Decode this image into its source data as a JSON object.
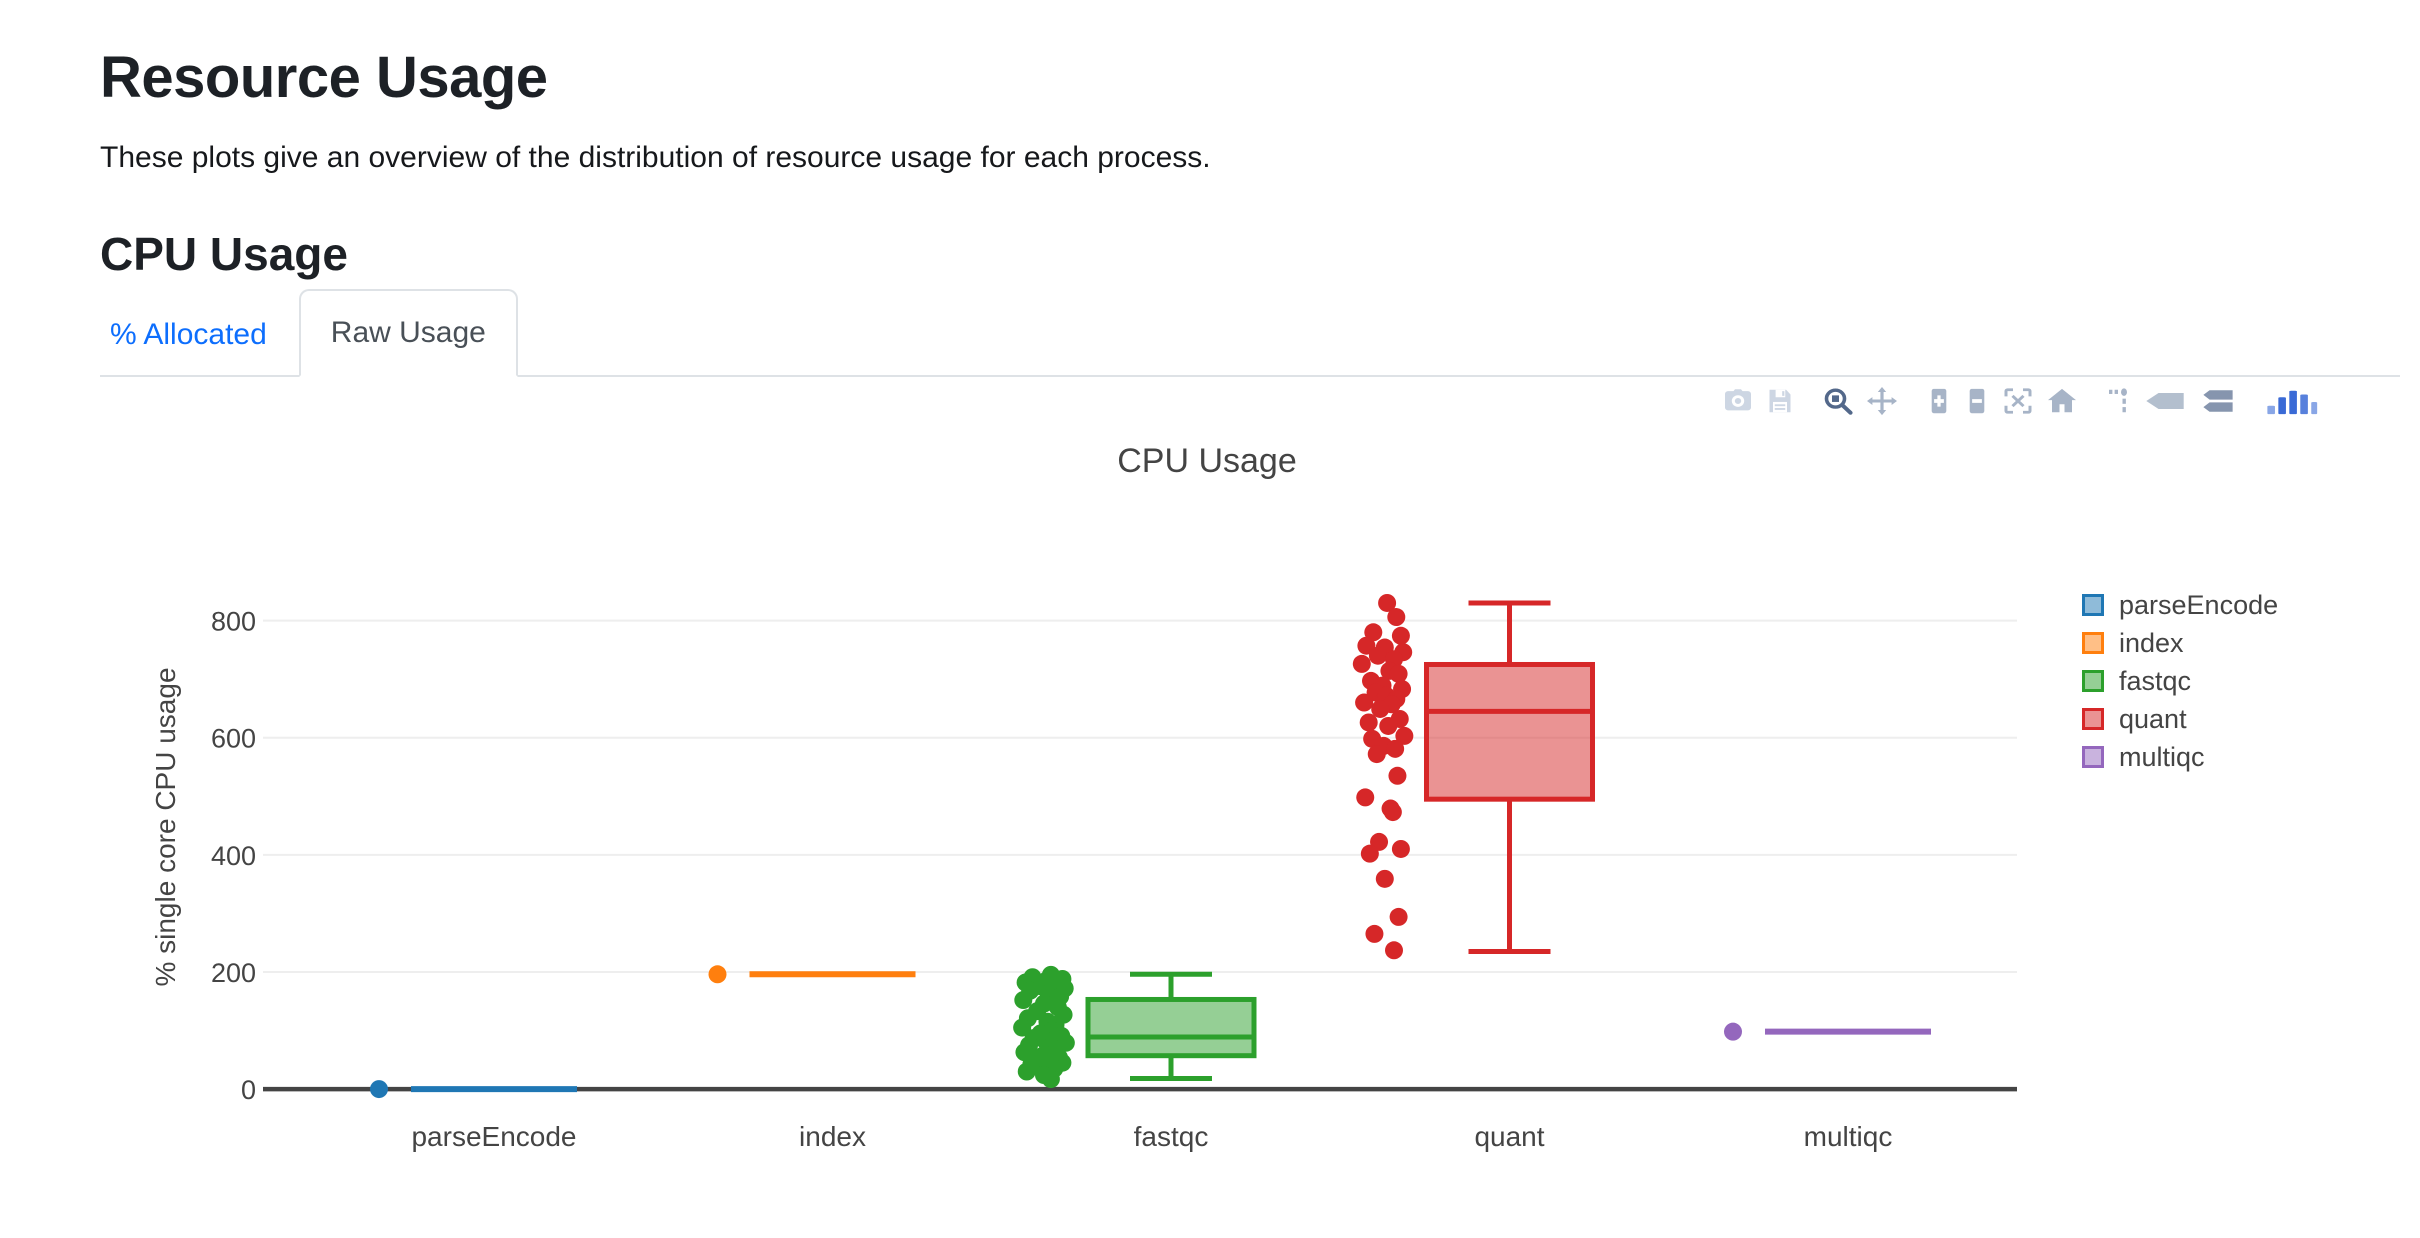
{
  "page": {
    "title": "Resource Usage",
    "subtitle": "These plots give an overview of the distribution of resource usage for each process.",
    "section_heading": "CPU Usage",
    "colors": {
      "heading": "#1d2126",
      "tab_link": "#0d6efd",
      "tab_active_text": "#495057",
      "tab_border": "#dee2e6"
    }
  },
  "tabs": [
    {
      "label": "% Allocated",
      "active": false
    },
    {
      "label": "Raw Usage",
      "active": true
    }
  ],
  "toolbar": {
    "buttons": [
      {
        "name": "download-png-icon",
        "icon": "camera",
        "color": "#cdd6e3",
        "group": 0
      },
      {
        "name": "save-plot-icon",
        "icon": "floppy",
        "color": "#cdd6e3",
        "group": 0
      },
      {
        "name": "zoom-icon",
        "icon": "zoom",
        "color": "#53688a",
        "group": 1,
        "active": true
      },
      {
        "name": "pan-icon",
        "icon": "pan",
        "color": "#a7b4c7",
        "group": 1
      },
      {
        "name": "zoom-in-icon",
        "icon": "zoomin",
        "color": "#a7b4c7",
        "group": 2
      },
      {
        "name": "zoom-out-icon",
        "icon": "zoomout",
        "color": "#a7b4c7",
        "group": 2
      },
      {
        "name": "autoscale-icon",
        "icon": "autoscale",
        "color": "#a7b4c7",
        "group": 2
      },
      {
        "name": "reset-axes-icon",
        "icon": "home",
        "color": "#a7b4c7",
        "group": 2
      },
      {
        "name": "spike-lines-icon",
        "icon": "spikes",
        "color": "#a7b4c7",
        "group": 3
      },
      {
        "name": "hover-closest-icon",
        "icon": "tag",
        "color": "#b3bfce",
        "group": 3
      },
      {
        "name": "hover-compare-icon",
        "icon": "tags",
        "color": "#8695ae",
        "group": 3
      },
      {
        "name": "plotly-logo-icon",
        "icon": "logo",
        "color": "#3a6ad6",
        "group": 4
      }
    ]
  },
  "chart_data": {
    "type": "box",
    "title": "CPU Usage",
    "ylabel": "% single core CPU usage",
    "xlabel": "",
    "ylim": [
      -5,
      900
    ],
    "yticks": [
      0,
      200,
      400,
      600,
      800
    ],
    "grid": true,
    "legend_position": "right",
    "categories": [
      "parseEncode",
      "index",
      "fastqc",
      "quant",
      "multiqc"
    ],
    "colors": {
      "grid": "#eeeeee",
      "zero_line": "#444444",
      "text": "#444444"
    },
    "series": [
      {
        "name": "parseEncode",
        "line": "#1f77b4",
        "fill": "rgba(31,119,180,0.5)",
        "box": {
          "min": 0,
          "q1": 0,
          "median": 0,
          "q3": 0,
          "max": 0
        },
        "points": [
          [
            0,
            0
          ]
        ]
      },
      {
        "name": "index",
        "line": "#ff7f0e",
        "fill": "rgba(255,127,14,0.5)",
        "box": {
          "min": 196,
          "q1": 196,
          "median": 196,
          "q3": 196,
          "max": 196
        },
        "points": [
          [
            0,
            196
          ]
        ]
      },
      {
        "name": "fastqc",
        "line": "#2ca02c",
        "fill": "rgba(44,160,44,0.5)",
        "box": {
          "min": 18,
          "q1": 57,
          "median": 89,
          "q3": 153,
          "max": 196
        },
        "points": [
          [
            0.3,
            195
          ],
          [
            -0.5,
            191
          ],
          [
            0.8,
            188
          ],
          [
            0.1,
            185
          ],
          [
            -0.8,
            182
          ],
          [
            0.5,
            179
          ],
          [
            -0.2,
            176
          ],
          [
            0.9,
            172
          ],
          [
            -0.6,
            168
          ],
          [
            0.2,
            163
          ],
          [
            0.7,
            158
          ],
          [
            -0.9,
            152
          ],
          [
            0.0,
            146
          ],
          [
            0.6,
            140
          ],
          [
            -0.3,
            133
          ],
          [
            0.85,
            127
          ],
          [
            -0.7,
            121
          ],
          [
            0.15,
            115
          ],
          [
            0.5,
            110
          ],
          [
            -0.95,
            105
          ],
          [
            0.35,
            100
          ],
          [
            -0.15,
            95
          ],
          [
            0.75,
            91
          ],
          [
            -0.45,
            87
          ],
          [
            0.05,
            83
          ],
          [
            0.95,
            79
          ],
          [
            -0.65,
            75
          ],
          [
            0.25,
            71
          ],
          [
            0.55,
            67
          ],
          [
            -0.85,
            63
          ],
          [
            0.4,
            60
          ],
          [
            -0.05,
            57
          ],
          [
            0.65,
            54
          ],
          [
            -0.35,
            51
          ],
          [
            0.1,
            48
          ],
          [
            0.8,
            45
          ],
          [
            -0.55,
            42
          ],
          [
            0.2,
            39
          ],
          [
            0.45,
            35
          ],
          [
            -0.75,
            30
          ],
          [
            0.0,
            24
          ],
          [
            0.3,
            17
          ]
        ]
      },
      {
        "name": "quant",
        "line": "#d62728",
        "fill": "rgba(214,39,40,0.5)",
        "box": {
          "min": 235,
          "q1": 495,
          "median": 645,
          "q3": 725,
          "max": 830
        },
        "points": [
          [
            0.2,
            830
          ],
          [
            0.6,
            806
          ],
          [
            -0.4,
            780
          ],
          [
            0.8,
            774
          ],
          [
            -0.7,
            757
          ],
          [
            0.1,
            754
          ],
          [
            0.9,
            746
          ],
          [
            -0.2,
            740
          ],
          [
            0.5,
            734
          ],
          [
            -0.9,
            726
          ],
          [
            0.3,
            714
          ],
          [
            0.7,
            709
          ],
          [
            -0.5,
            697
          ],
          [
            0.0,
            689
          ],
          [
            0.85,
            683
          ],
          [
            -0.3,
            677
          ],
          [
            0.15,
            672
          ],
          [
            0.6,
            666
          ],
          [
            -0.8,
            660
          ],
          [
            0.4,
            657
          ],
          [
            -0.1,
            649
          ],
          [
            0.75,
            632
          ],
          [
            -0.6,
            626
          ],
          [
            0.25,
            620
          ],
          [
            0.95,
            603
          ],
          [
            -0.45,
            598
          ],
          [
            0.05,
            586
          ],
          [
            0.55,
            581
          ],
          [
            -0.25,
            572
          ],
          [
            0.65,
            535
          ],
          [
            -0.75,
            498
          ],
          [
            0.35,
            479
          ],
          [
            0.45,
            473
          ],
          [
            -0.15,
            422
          ],
          [
            0.8,
            410
          ],
          [
            -0.55,
            402
          ],
          [
            0.1,
            359
          ],
          [
            0.7,
            294
          ],
          [
            -0.35,
            265
          ],
          [
            0.5,
            237
          ]
        ]
      },
      {
        "name": "multiqc",
        "line": "#9467bd",
        "fill": "rgba(148,103,189,0.5)",
        "box": {
          "min": 98,
          "q1": 98,
          "median": 98,
          "q3": 98,
          "max": 98
        },
        "points": [
          [
            0,
            98
          ]
        ]
      }
    ]
  }
}
